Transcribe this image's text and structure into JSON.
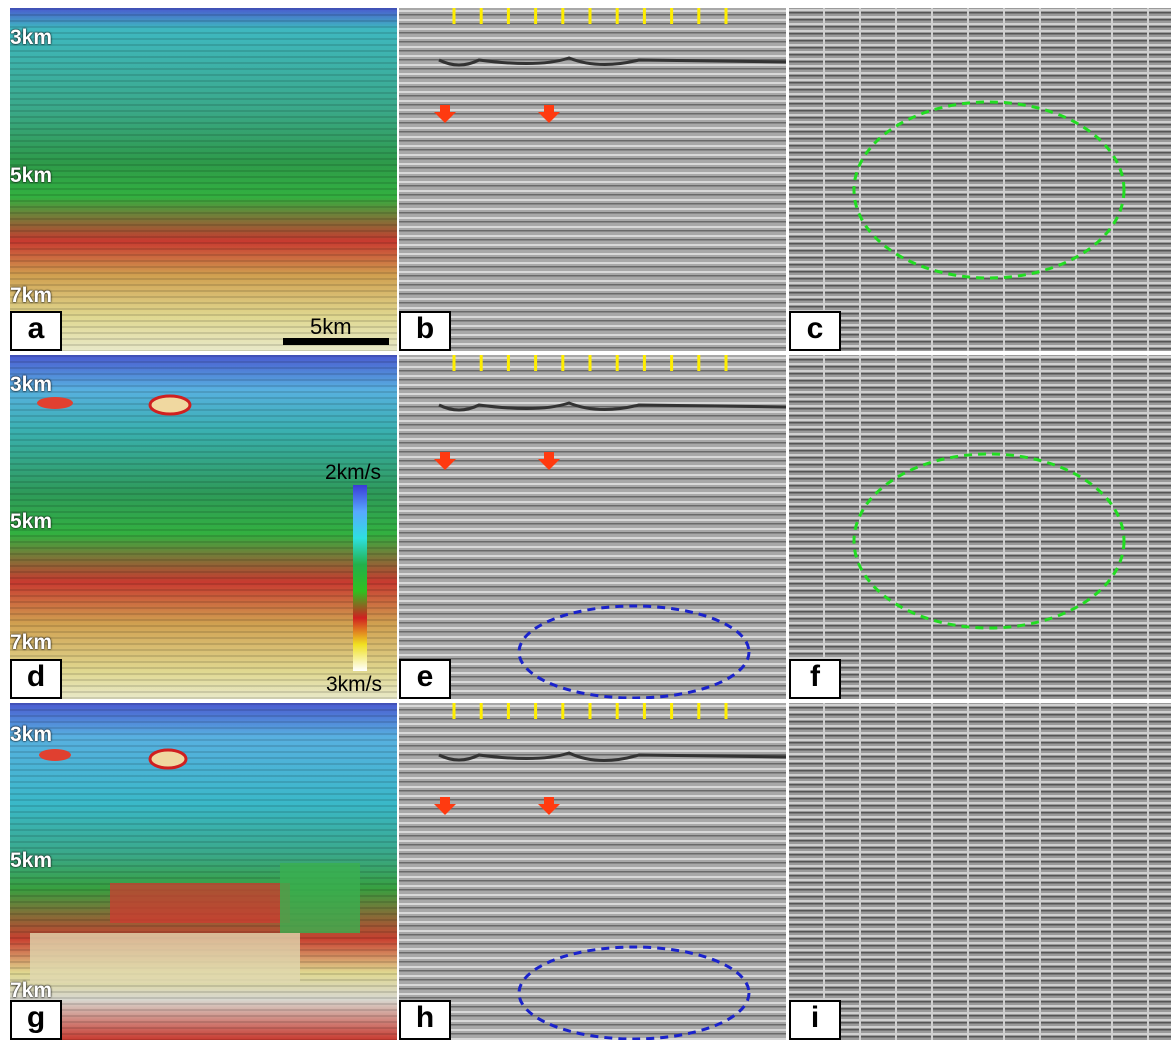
{
  "panels": [
    {
      "id": "a",
      "label": "a"
    },
    {
      "id": "b",
      "label": "b"
    },
    {
      "id": "c",
      "label": "c"
    },
    {
      "id": "d",
      "label": "d"
    },
    {
      "id": "e",
      "label": "e"
    },
    {
      "id": "f",
      "label": "f"
    },
    {
      "id": "g",
      "label": "g"
    },
    {
      "id": "h",
      "label": "h"
    },
    {
      "id": "i",
      "label": "i"
    }
  ],
  "depth_labels": [
    "3km",
    "5km",
    "7km"
  ],
  "scale_bar": {
    "label": "5km"
  },
  "colorbar": {
    "top_label": "2km/s",
    "bottom_label": "3km/s",
    "colors": [
      "#3a3ad8",
      "#58a8ff",
      "#2ee0e0",
      "#22b04a",
      "#30c020",
      "#d02020",
      "#f0e020",
      "#ffffff"
    ]
  },
  "annotation_colors": {
    "arrow": "#ff3a10",
    "tick": "#ffee00",
    "blue_ellipse": "#1a22cc",
    "green_ellipse": "#22dd22"
  }
}
